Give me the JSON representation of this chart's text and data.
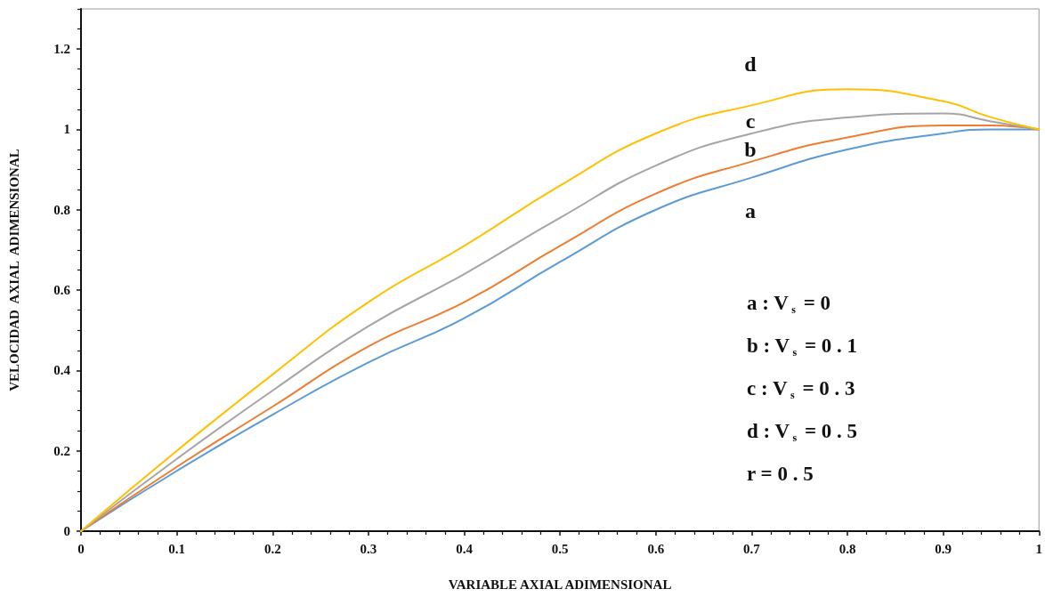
{
  "chart_data": {
    "type": "line",
    "xlabel": "VARIABLE AXIAL ADIMENSIONAL",
    "ylabel": "VELOCIDAD  AXIAL  ADIMENSIONAL",
    "x": [
      0,
      0.1,
      0.2,
      0.3,
      0.4,
      0.5,
      0.6,
      0.7,
      0.8,
      0.9,
      0.95,
      1
    ],
    "series": [
      {
        "color": "#5b9bd5",
        "values": [
          0,
          0.15,
          0.29,
          0.42,
          0.53,
          0.67,
          0.8,
          0.88,
          0.95,
          0.99,
          1.0,
          1
        ]
      },
      {
        "color": "#ed7d31",
        "values": [
          0,
          0.16,
          0.31,
          0.46,
          0.57,
          0.71,
          0.84,
          0.92,
          0.98,
          1.01,
          1.01,
          1
        ]
      },
      {
        "color": "#a5a5a5",
        "values": [
          0,
          0.18,
          0.35,
          0.51,
          0.64,
          0.78,
          0.91,
          0.99,
          1.03,
          1.04,
          1.02,
          1
        ]
      },
      {
        "color": "#ffc000",
        "values": [
          0,
          0.2,
          0.39,
          0.57,
          0.71,
          0.86,
          0.99,
          1.06,
          1.1,
          1.07,
          1.03,
          1
        ]
      }
    ],
    "xlim": [
      0,
      1
    ],
    "xticks": [
      0,
      0.1,
      0.2,
      0.3,
      0.4,
      0.5,
      0.6,
      0.7,
      0.8,
      0.9,
      1
    ],
    "ylim": [
      0,
      1.3
    ],
    "yticks": [
      0,
      0.2,
      0.4,
      0.6,
      0.8,
      1,
      1.2
    ],
    "grid": false,
    "marker": "none",
    "line_style": "solid",
    "annotations": [
      "d",
      "c",
      "b",
      "a",
      "a : V$_{s}$ = 0",
      "b : V$_{s}$ = 0 . 1",
      "c : V$_{s}$ = 0 . 3",
      "d : V$_{s}$ = 0 . 5",
      "r = 0 . 5"
    ]
  }
}
